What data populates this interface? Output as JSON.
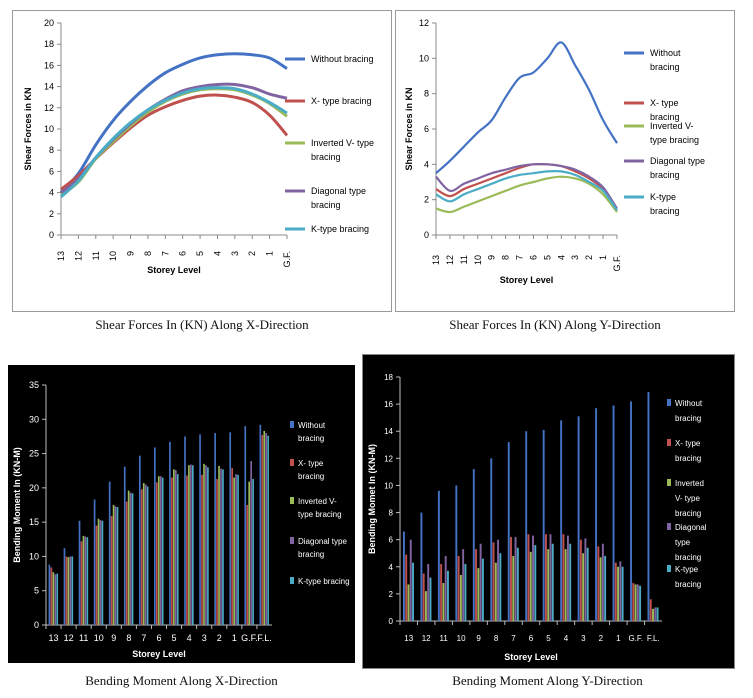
{
  "captions": {
    "shear_x": "Shear Forces In (KN) Along X-Direction",
    "shear_y": "Shear Forces In (KN) Along Y-Direction",
    "moment_x": "Bending Moment Along X-Direction",
    "moment_y": "Bending Moment Along Y-Direction"
  },
  "series_colors": {
    "without": "#4472C4",
    "xtype": "#C0504D",
    "invv": "#9BBB59",
    "diag": "#8064A2",
    "ktype": "#4BACC6"
  },
  "chart_data": [
    {
      "type": "line",
      "xlabel": "Storey Level",
      "ylabel": "Shear Forces in KN",
      "ylim": [
        0,
        20
      ],
      "yticks": [
        0,
        2,
        4,
        6,
        8,
        10,
        12,
        14,
        16,
        18,
        20
      ],
      "categories": [
        "13",
        "12",
        "11",
        "10",
        "9",
        "8",
        "7",
        "6",
        "5",
        "4",
        "3",
        "2",
        "1",
        "G.F."
      ],
      "legend": "right",
      "series": [
        {
          "name": "Without bracing",
          "values": [
            4.0,
            5.8,
            8.5,
            10.8,
            12.6,
            14.1,
            15.3,
            16.1,
            16.7,
            17.0,
            17.1,
            17.0,
            16.7,
            15.7
          ]
        },
        {
          "name": "X- type bracing",
          "values": [
            4.3,
            5.6,
            7.2,
            8.7,
            10.1,
            11.3,
            12.1,
            12.7,
            13.1,
            13.2,
            13.0,
            12.5,
            11.3,
            9.4
          ]
        },
        {
          "name": "Inverted V- type bracing",
          "values": [
            3.8,
            5.0,
            7.2,
            8.8,
            10.3,
            11.6,
            12.6,
            13.3,
            13.7,
            13.8,
            13.7,
            13.2,
            12.4,
            11.2
          ]
        },
        {
          "name": "Diagonal type bracing",
          "values": [
            4.0,
            5.3,
            7.3,
            9.0,
            10.5,
            11.8,
            12.8,
            13.6,
            14.0,
            14.2,
            14.2,
            13.9,
            13.3,
            12.9
          ]
        },
        {
          "name": "K-type bracing",
          "values": [
            3.6,
            5.1,
            7.3,
            9.1,
            10.6,
            11.8,
            12.7,
            13.4,
            13.8,
            13.9,
            13.8,
            13.3,
            12.5,
            11.5
          ]
        }
      ]
    },
    {
      "type": "line",
      "xlabel": "Storey Level",
      "ylabel": "Shear Forces in KN",
      "ylim": [
        0,
        12
      ],
      "yticks": [
        0,
        2,
        4,
        6,
        8,
        10,
        12
      ],
      "categories": [
        "13",
        "12",
        "11",
        "10",
        "9",
        "8",
        "7",
        "6",
        "5",
        "4",
        "3",
        "2",
        "1",
        "G.F."
      ],
      "legend": "right",
      "series": [
        {
          "name": "Without bracing",
          "values": [
            3.5,
            4.2,
            5.0,
            5.8,
            6.5,
            7.8,
            8.9,
            9.2,
            10.0,
            10.9,
            9.6,
            8.2,
            6.5,
            5.2
          ]
        },
        {
          "name": "X- type bracing",
          "values": [
            2.6,
            2.2,
            2.6,
            2.9,
            3.2,
            3.5,
            3.8,
            4.0,
            4.0,
            3.9,
            3.6,
            3.2,
            2.6,
            1.4
          ]
        },
        {
          "name": "Inverted V- type bracing",
          "values": [
            1.5,
            1.3,
            1.6,
            1.9,
            2.2,
            2.5,
            2.8,
            3.0,
            3.2,
            3.3,
            3.2,
            2.9,
            2.3,
            1.3
          ]
        },
        {
          "name": "Diagonal type bracing",
          "values": [
            3.3,
            2.5,
            2.9,
            3.2,
            3.5,
            3.7,
            3.9,
            4.0,
            4.0,
            3.9,
            3.7,
            3.3,
            2.7,
            1.5
          ]
        },
        {
          "name": "K-type bracing",
          "values": [
            2.3,
            1.9,
            2.3,
            2.6,
            2.9,
            3.2,
            3.4,
            3.5,
            3.6,
            3.6,
            3.4,
            3.0,
            2.5,
            1.4
          ]
        }
      ]
    },
    {
      "type": "bar",
      "xlabel": "Storey Level",
      "ylabel": "Bending Moment In (KN-M)",
      "ylim": [
        0,
        35
      ],
      "yticks": [
        0,
        5,
        10,
        15,
        20,
        25,
        30,
        35
      ],
      "categories": [
        "13",
        "12",
        "11",
        "10",
        "9",
        "8",
        "7",
        "6",
        "5",
        "4",
        "3",
        "2",
        "1",
        "G.F.",
        "F.L."
      ],
      "legend": "right",
      "series": [
        {
          "name": "Without bracing",
          "values": [
            8.8,
            11.2,
            15.2,
            18.3,
            20.9,
            23.1,
            24.7,
            25.9,
            26.7,
            27.5,
            27.8,
            28.0,
            28.1,
            29.0,
            29.2
          ]
        },
        {
          "name": "X- type bracing",
          "values": [
            8.4,
            10.0,
            12.2,
            14.5,
            15.9,
            18.0,
            19.8,
            20.8,
            21.5,
            21.8,
            21.9,
            21.3,
            22.9,
            17.5,
            27.7
          ]
        },
        {
          "name": "Inverted V- type bracing",
          "values": [
            7.7,
            9.9,
            13.0,
            15.5,
            17.5,
            19.6,
            20.7,
            21.7,
            22.7,
            23.3,
            23.5,
            23.2,
            21.5,
            20.9,
            28.3
          ]
        },
        {
          "name": "Diagonal type bracing",
          "values": [
            7.4,
            10.0,
            12.9,
            15.3,
            17.3,
            19.3,
            20.5,
            21.7,
            22.6,
            23.4,
            23.3,
            22.8,
            22.0,
            23.9,
            28.0
          ]
        },
        {
          "name": "K-type bracing",
          "values": [
            7.5,
            10.0,
            12.8,
            15.2,
            17.2,
            19.2,
            20.2,
            21.5,
            22.0,
            23.3,
            23.0,
            22.7,
            21.9,
            21.3,
            27.6
          ]
        }
      ]
    },
    {
      "type": "bar",
      "xlabel": "Storey Level",
      "ylabel": "Bending Momet In (KN-M)",
      "ylim": [
        0,
        18
      ],
      "yticks": [
        0,
        2,
        4,
        6,
        8,
        10,
        12,
        14,
        16,
        18
      ],
      "categories": [
        "13",
        "12",
        "11",
        "10",
        "9",
        "8",
        "7",
        "6",
        "5",
        "4",
        "3",
        "2",
        "1",
        "G.F.",
        "F.L."
      ],
      "legend": "right",
      "series": [
        {
          "name": "Without bracing",
          "values": [
            6.6,
            8.0,
            9.6,
            10.0,
            11.2,
            12.0,
            13.2,
            14.0,
            14.1,
            14.8,
            15.1,
            15.7,
            15.9,
            16.2,
            16.9
          ]
        },
        {
          "name": "X- type bracing",
          "values": [
            4.9,
            3.5,
            4.2,
            4.8,
            5.3,
            5.8,
            6.2,
            6.4,
            6.4,
            6.4,
            6.0,
            5.5,
            4.3,
            2.8,
            1.6
          ]
        },
        {
          "name": "Inverted V- type bracing",
          "values": [
            2.7,
            2.2,
            2.8,
            3.4,
            3.9,
            4.3,
            4.8,
            5.1,
            5.3,
            5.3,
            5.0,
            4.7,
            4.0,
            2.7,
            0.9
          ]
        },
        {
          "name": "Diagonal type bracing",
          "values": [
            6.0,
            4.2,
            4.8,
            5.3,
            5.7,
            6.0,
            6.2,
            6.3,
            6.4,
            6.3,
            6.1,
            5.7,
            4.4,
            2.7,
            1.0
          ]
        },
        {
          "name": "K-type bracing",
          "values": [
            4.3,
            3.2,
            3.7,
            4.2,
            4.6,
            5.0,
            5.4,
            5.6,
            5.7,
            5.7,
            5.4,
            4.8,
            4.0,
            2.6,
            1.0
          ]
        }
      ]
    }
  ]
}
